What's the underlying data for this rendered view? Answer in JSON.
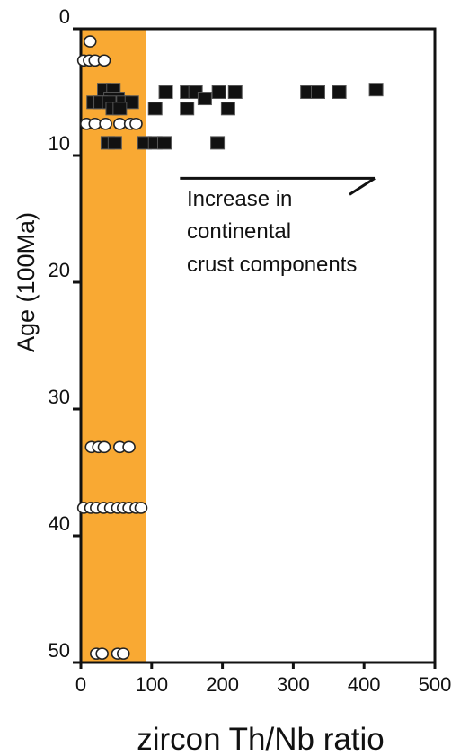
{
  "chart_data": {
    "type": "scatter",
    "title": "",
    "xlabel": "zircon Th/Nb ratio",
    "ylabel": "Age (100Ma)",
    "xlim": [
      0,
      500
    ],
    "ylim": [
      0,
      50
    ],
    "y_inverted": true,
    "x_ticks": [
      "0",
      "100",
      "200",
      "300",
      "400",
      "500"
    ],
    "y_ticks": [
      "0",
      "10",
      "20",
      "30",
      "40",
      "50"
    ],
    "grid": false,
    "shaded_band": {
      "x_from": 0,
      "x_to": 92,
      "color": "#f9a933"
    },
    "annotation": {
      "lines": [
        "Increase in",
        "continental",
        "crust components"
      ],
      "arrow_from": [
        140,
        11.8
      ],
      "arrow_to": [
        415,
        11.8
      ]
    },
    "series": [
      {
        "marker": "open-circle",
        "points": [
          [
            13,
            1.0
          ],
          [
            4,
            2.5
          ],
          [
            12,
            2.5
          ],
          [
            20,
            2.5
          ],
          [
            33,
            2.5
          ],
          [
            8,
            7.5
          ],
          [
            20,
            7.5
          ],
          [
            35,
            7.5
          ],
          [
            55,
            7.5
          ],
          [
            70,
            7.5
          ],
          [
            78,
            7.5
          ],
          [
            15,
            33
          ],
          [
            25,
            33
          ],
          [
            33,
            33
          ],
          [
            55,
            33
          ],
          [
            68,
            33
          ],
          [
            4,
            37.8
          ],
          [
            14,
            37.8
          ],
          [
            22,
            37.8
          ],
          [
            32,
            37.8
          ],
          [
            42,
            37.8
          ],
          [
            52,
            37.8
          ],
          [
            60,
            37.8
          ],
          [
            68,
            37.8
          ],
          [
            78,
            37.8
          ],
          [
            85,
            37.8
          ],
          [
            22,
            49.3
          ],
          [
            30,
            49.3
          ],
          [
            52,
            49.3
          ],
          [
            60,
            49.3
          ]
        ]
      },
      {
        "marker": "filled-square",
        "points": [
          [
            33,
            4.8
          ],
          [
            46,
            4.8
          ],
          [
            42,
            5.5
          ],
          [
            52,
            5.5
          ],
          [
            18,
            5.8
          ],
          [
            28,
            5.8
          ],
          [
            40,
            5.8
          ],
          [
            60,
            5.8
          ],
          [
            72,
            5.8
          ],
          [
            45,
            6.3
          ],
          [
            55,
            6.3
          ],
          [
            120,
            5.0
          ],
          [
            150,
            5.0
          ],
          [
            162,
            5.0
          ],
          [
            195,
            5.0
          ],
          [
            218,
            5.0
          ],
          [
            175,
            5.5
          ],
          [
            105,
            6.3
          ],
          [
            150,
            6.3
          ],
          [
            208,
            6.3
          ],
          [
            320,
            5.0
          ],
          [
            335,
            5.0
          ],
          [
            365,
            5.0
          ],
          [
            417,
            4.8
          ],
          [
            38,
            9.0
          ],
          [
            48,
            9.0
          ],
          [
            90,
            9.0
          ],
          [
            105,
            9.0
          ],
          [
            118,
            9.0
          ],
          [
            193,
            9.0
          ]
        ]
      }
    ]
  }
}
